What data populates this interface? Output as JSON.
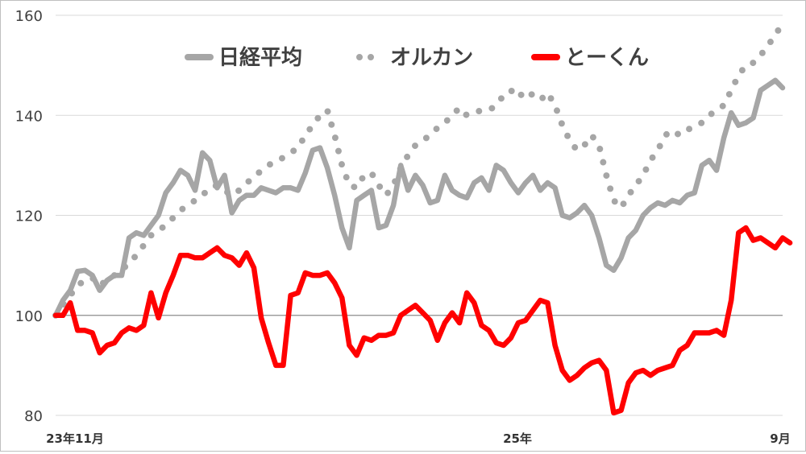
{
  "chart_data": {
    "type": "line",
    "title": "",
    "xlabel": "",
    "ylabel": "",
    "ylim": [
      80,
      160
    ],
    "yticks": [
      80,
      100,
      120,
      140,
      160
    ],
    "x_tick_labels": [
      "23年11月",
      "25年",
      "9月"
    ],
    "grid": "horizontal",
    "legend_placement": "top",
    "baseline": 100,
    "series": [
      {
        "name": "日経平均",
        "color": "#a6a6a6",
        "style": "solid",
        "values": [
          100,
          103,
          105,
          108.8,
          109,
          108,
          105,
          107,
          108,
          108,
          115.5,
          116.5,
          116,
          118,
          120,
          124.5,
          126.5,
          129,
          128,
          125,
          132.5,
          131,
          125.5,
          128,
          120.5,
          123,
          124,
          124,
          125.5,
          125,
          124.5,
          125.5,
          125.5,
          125,
          128.5,
          133,
          133.5,
          129.5,
          124,
          117.5,
          113.5,
          123,
          124,
          125,
          117.5,
          118,
          122,
          130,
          125,
          128,
          126,
          122.5,
          123,
          128,
          125,
          124,
          123.5,
          126.5,
          127.5,
          125,
          130,
          129,
          126.5,
          124.5,
          126.5,
          128,
          125,
          126.5,
          125.5,
          120,
          119.5,
          120.5,
          122,
          120,
          115.5,
          110,
          109,
          111.5,
          115.5,
          117,
          120,
          121.5,
          122.5,
          122,
          123,
          122.5,
          124,
          124.5,
          130,
          131,
          129,
          135.5,
          140.5,
          138,
          138.5,
          139.5,
          145,
          146,
          147,
          145.5
        ]
      },
      {
        "name": "オルカン",
        "color": "#a6a6a6",
        "style": "dotted",
        "values": [
          100,
          102,
          104,
          106,
          107,
          107.5,
          106,
          107,
          108,
          109,
          110.5,
          112,
          114,
          116,
          117,
          118,
          119.5,
          121,
          122,
          123,
          124,
          125.5,
          126,
          125,
          124,
          125,
          126.5,
          127.5,
          129,
          130,
          131,
          131.5,
          132.5,
          133.5,
          136,
          138,
          140,
          141,
          136,
          130,
          126,
          125.5,
          128,
          128.5,
          126,
          124,
          126,
          129.5,
          132,
          134,
          135,
          136,
          137.5,
          138.5,
          140,
          141.5,
          140,
          140.5,
          141,
          141,
          142,
          144,
          145,
          143.5,
          145,
          144,
          143,
          144.5,
          142,
          138,
          135,
          133,
          134,
          136,
          134,
          128,
          123,
          121.5,
          124,
          126,
          128,
          131,
          133,
          136,
          137,
          136,
          137,
          138,
          138.5,
          140,
          141,
          142,
          145,
          148,
          150,
          150.5,
          152,
          154,
          156,
          158.5
        ]
      },
      {
        "name": "とーくん",
        "color": "#ff0000",
        "style": "solid",
        "values": [
          100,
          100,
          102.5,
          97,
          97,
          96.5,
          92.5,
          94,
          94.5,
          96.5,
          97.5,
          97,
          98,
          104.5,
          99.5,
          104.5,
          108,
          112,
          112,
          111.5,
          111.5,
          112.5,
          113.5,
          112,
          111.5,
          110,
          112.5,
          109.5,
          99.5,
          94.5,
          90,
          90,
          104,
          104.5,
          108.5,
          108,
          108,
          108.5,
          106.5,
          103.5,
          94,
          92,
          95.5,
          95,
          96,
          96,
          96.5,
          100,
          101,
          102,
          100.5,
          99,
          95,
          98.5,
          100.5,
          98.5,
          104.5,
          102.5,
          98,
          97,
          94.5,
          94,
          95.5,
          98.5,
          99,
          101,
          103,
          102.5,
          94,
          89,
          87,
          88,
          89.5,
          90.5,
          91,
          89,
          80.5,
          81,
          86.5,
          88.5,
          89,
          88,
          89,
          89.5,
          90,
          93,
          94,
          96.5,
          96.5,
          96.5,
          97,
          96,
          103,
          116.5,
          117.5,
          115,
          115.5,
          114.5,
          113.5,
          115.5,
          114.5
        ]
      }
    ]
  }
}
